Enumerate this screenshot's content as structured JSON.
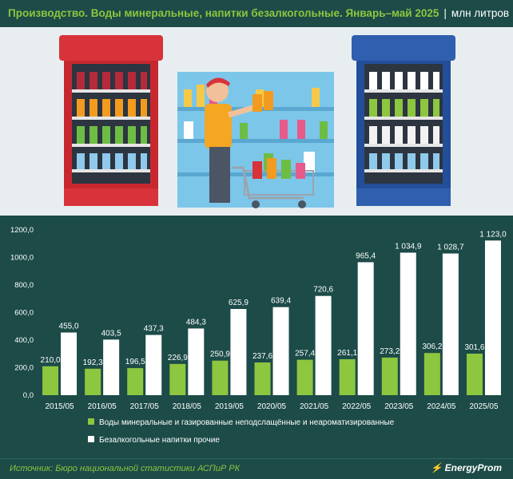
{
  "header": {
    "title": "Производство. Воды минеральные, напитки безалкогольные. Январь–май 2025",
    "separator": "|",
    "unit": "млн литров"
  },
  "footer": {
    "source": "Источник: Бюро национальной статистики АСПиР РК",
    "brand": "EnergyProm"
  },
  "colors": {
    "background": "#1c4b48",
    "series_green": "#8dc63f",
    "series_white": "#ffffff",
    "title_green": "#8dc63f"
  },
  "chart_data": {
    "type": "bar",
    "categories": [
      "2015/05",
      "2016/05",
      "2017/05",
      "2018/05",
      "2019/05",
      "2020/05",
      "2021/05",
      "2022/05",
      "2023/05",
      "2024/05",
      "2025/05"
    ],
    "series": [
      {
        "name": "Воды минеральные и газированные неподслащённые и неароматизированные",
        "color": "#8dc63f",
        "values": [
          210.0,
          192.3,
          196.5,
          226.9,
          250.9,
          237.6,
          257.4,
          261.1,
          273.2,
          306.2,
          301.6
        ],
        "labels": [
          "210,0",
          "192,3",
          "196,5",
          "226,9",
          "250,9",
          "237,6",
          "257,4",
          "261,1",
          "273,2",
          "306,2",
          "301,6"
        ]
      },
      {
        "name": "Безалкогольные напитки прочие",
        "color": "#ffffff",
        "values": [
          455.0,
          403.5,
          437.3,
          484.3,
          625.9,
          639.4,
          720.6,
          965.4,
          1034.9,
          1028.7,
          1123.0
        ],
        "labels": [
          "455,0",
          "403,5",
          "437,3",
          "484,3",
          "625,9",
          "639,4",
          "720,6",
          "965,4",
          "1 034,9",
          "1 028,7",
          "1 123,0"
        ]
      }
    ],
    "ylim": [
      0,
      1200
    ],
    "yticks": [
      0,
      200,
      400,
      600,
      800,
      1000,
      1200
    ],
    "ytick_labels": [
      "0,0",
      "200,0",
      "400,0",
      "600,0",
      "800,0",
      "1000,0",
      "1200,0"
    ],
    "grid": false,
    "legend_position": "bottom"
  }
}
